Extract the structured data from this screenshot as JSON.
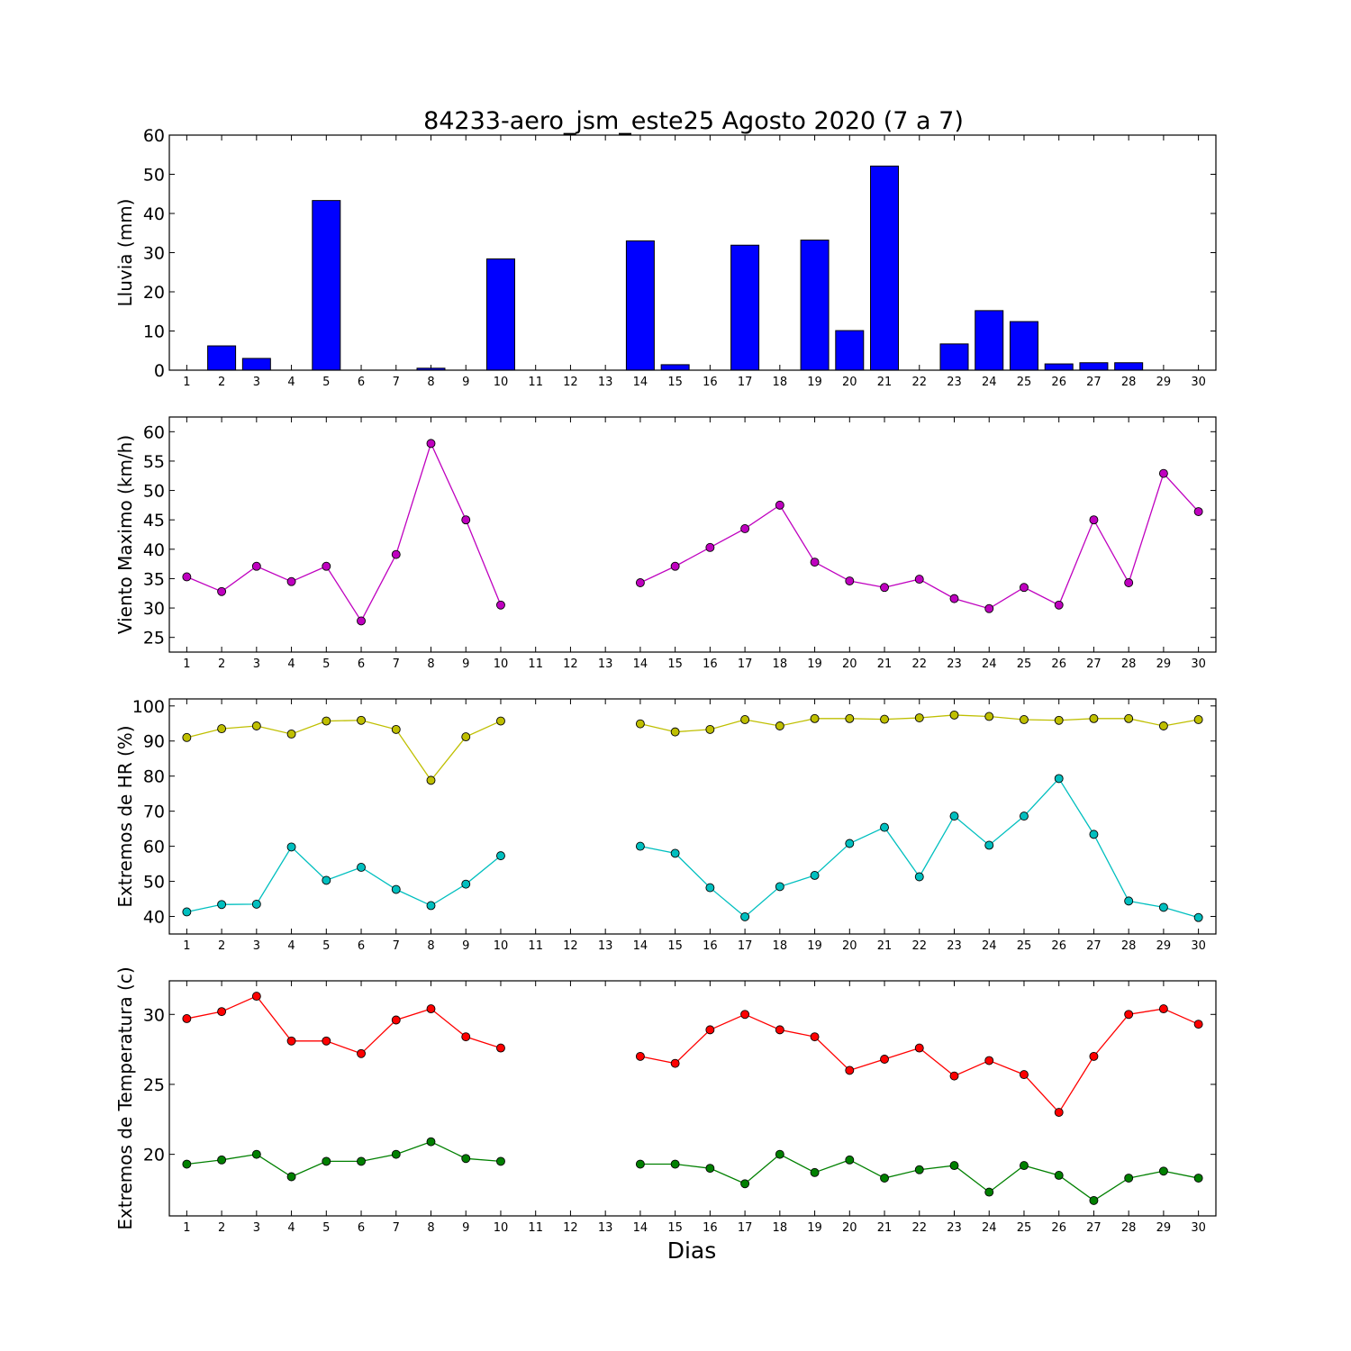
{
  "title": "84233-aero_jsm_este25 Agosto 2020  (7 a 7)",
  "xlabel": "Dias",
  "chart_data": [
    {
      "type": "bar",
      "ylabel": "Lluvia (mm)",
      "ylim": [
        0,
        60
      ],
      "yticks": [
        0,
        10,
        20,
        30,
        40,
        50,
        60
      ],
      "categories": [
        1,
        2,
        3,
        4,
        5,
        6,
        7,
        8,
        9,
        10,
        11,
        12,
        13,
        14,
        15,
        16,
        17,
        18,
        19,
        20,
        21,
        22,
        23,
        24,
        25,
        26,
        27,
        28,
        29,
        30
      ],
      "colors": {
        "bar": "#0000ff"
      },
      "series": [
        {
          "values": [
            0,
            6.2,
            3.0,
            0,
            43.3,
            0,
            0,
            0.5,
            0,
            28.4,
            0,
            0,
            0,
            33.0,
            1.4,
            0,
            31.9,
            0,
            33.2,
            10.1,
            52.1,
            0,
            6.7,
            15.2,
            12.4,
            1.6,
            1.9,
            1.9,
            0,
            0
          ]
        }
      ]
    },
    {
      "type": "line",
      "ylabel": "Viento Maximo (km/h)",
      "ylim": [
        22.5,
        62.5
      ],
      "yticks": [
        25,
        30,
        35,
        40,
        45,
        50,
        55,
        60
      ],
      "x": [
        1,
        2,
        3,
        4,
        5,
        6,
        7,
        8,
        9,
        10,
        11,
        12,
        13,
        14,
        15,
        16,
        17,
        18,
        19,
        20,
        21,
        22,
        23,
        24,
        25,
        26,
        27,
        28,
        29,
        30
      ],
      "series": [
        {
          "color": "#bf00bf",
          "values": [
            35.3,
            32.8,
            37.1,
            34.5,
            37.1,
            27.8,
            39.1,
            58.0,
            45.0,
            30.5,
            null,
            null,
            null,
            34.3,
            37.1,
            40.3,
            43.5,
            47.5,
            37.8,
            34.6,
            33.5,
            34.9,
            31.6,
            29.9,
            33.5,
            30.5,
            45.0,
            34.3,
            52.9,
            46.4
          ]
        }
      ]
    },
    {
      "type": "line",
      "ylabel": "Extremos de HR (%)",
      "ylim": [
        35,
        102
      ],
      "yticks": [
        40,
        50,
        60,
        70,
        80,
        90,
        100
      ],
      "x": [
        1,
        2,
        3,
        4,
        5,
        6,
        7,
        8,
        9,
        10,
        11,
        12,
        13,
        14,
        15,
        16,
        17,
        18,
        19,
        20,
        21,
        22,
        23,
        24,
        25,
        26,
        27,
        28,
        29,
        30
      ],
      "series": [
        {
          "color": "#bfbf00",
          "values": [
            91.0,
            93.5,
            94.3,
            92.0,
            95.7,
            95.9,
            93.3,
            78.8,
            91.2,
            95.7,
            null,
            null,
            null,
            94.9,
            92.6,
            93.3,
            96.1,
            94.3,
            96.4,
            96.4,
            96.2,
            96.6,
            97.4,
            97.0,
            96.1,
            95.9,
            96.4,
            96.4,
            94.3,
            96.1
          ]
        },
        {
          "color": "#00bfbf",
          "values": [
            41.3,
            43.4,
            43.5,
            59.8,
            50.3,
            54.0,
            47.7,
            43.1,
            49.2,
            57.3,
            null,
            null,
            null,
            60.0,
            58.0,
            48.2,
            39.9,
            48.5,
            51.7,
            60.8,
            65.4,
            51.3,
            68.6,
            60.3,
            68.6,
            79.3,
            63.4,
            44.4,
            42.6,
            39.7
          ]
        }
      ]
    },
    {
      "type": "line",
      "ylabel": "Extremos de Temperatura (c)",
      "ylim": [
        15.6,
        32.4
      ],
      "yticks": [
        20,
        25,
        30
      ],
      "x": [
        1,
        2,
        3,
        4,
        5,
        6,
        7,
        8,
        9,
        10,
        11,
        12,
        13,
        14,
        15,
        16,
        17,
        18,
        19,
        20,
        21,
        22,
        23,
        24,
        25,
        26,
        27,
        28,
        29,
        30
      ],
      "series": [
        {
          "color": "#ff0000",
          "values": [
            29.7,
            30.2,
            31.3,
            28.1,
            28.1,
            27.2,
            29.6,
            30.4,
            28.4,
            27.6,
            null,
            null,
            null,
            27.0,
            26.5,
            28.9,
            30.0,
            28.9,
            28.4,
            26.0,
            26.8,
            27.6,
            25.6,
            26.7,
            25.7,
            23.0,
            27.0,
            30.0,
            30.4,
            29.3
          ]
        },
        {
          "color": "#008000",
          "values": [
            19.3,
            19.6,
            20.0,
            18.4,
            19.5,
            19.5,
            20.0,
            20.9,
            19.7,
            19.5,
            null,
            null,
            null,
            19.3,
            19.3,
            19.0,
            17.9,
            20.0,
            18.7,
            19.6,
            18.3,
            18.9,
            19.2,
            17.3,
            19.2,
            18.5,
            16.7,
            18.3,
            18.8,
            18.3
          ]
        }
      ]
    }
  ]
}
